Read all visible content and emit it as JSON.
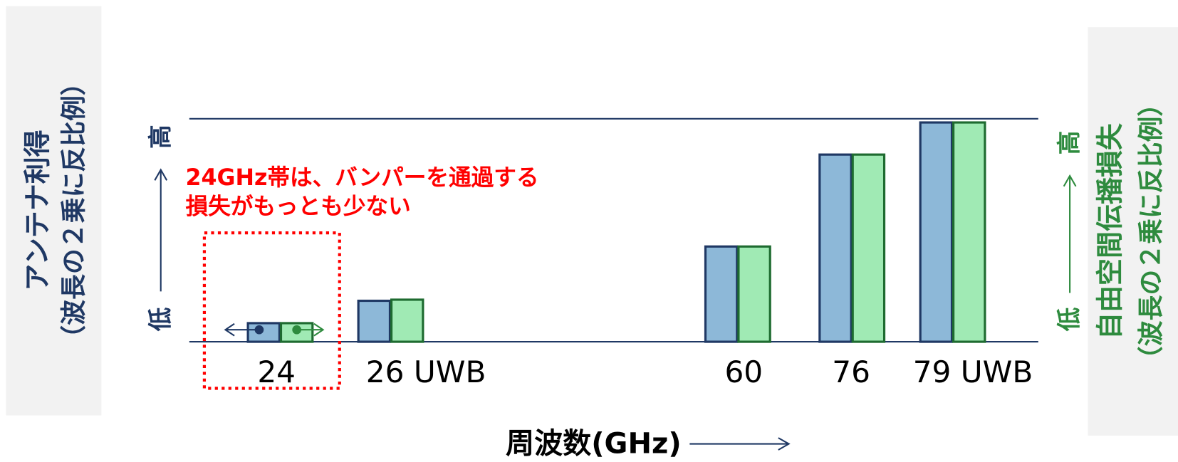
{
  "chart_data": {
    "type": "bar",
    "categories": [
      "24",
      "26 UWB",
      "60",
      "76",
      "79 UWB"
    ],
    "series": [
      {
        "name": "アンテナ利得",
        "color": "#8db8d8",
        "values": [
          8.4,
          18.5,
          43,
          84.5,
          99
        ]
      },
      {
        "name": "自由空間伝播損失",
        "color": "#a0eab4",
        "values": [
          8.4,
          19,
          43,
          84.5,
          99
        ]
      }
    ],
    "ylim": [
      0,
      100
    ],
    "left_axis": {
      "title": "アンテナ利得",
      "subtitle": "（波長の２乗に反比例）",
      "low": "低",
      "high": "高"
    },
    "right_axis": {
      "title": "自由空間伝播損失",
      "subtitle": "（波長の２乗に反比例）",
      "low": "低",
      "high": "高"
    },
    "annotation": [
      "24GHz帯は、バンパーを通過する",
      "損失がもっとも少ない"
    ],
    "xlabel": "周波数(GHz)"
  }
}
